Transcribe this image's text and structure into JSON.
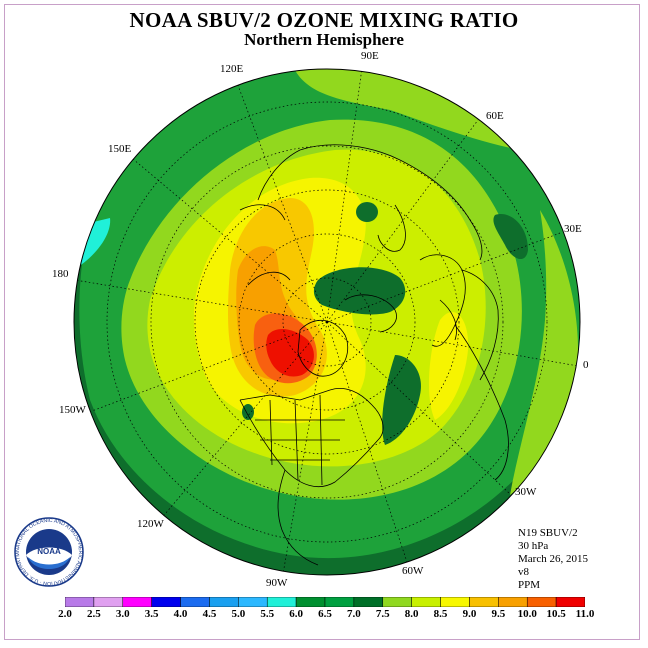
{
  "title": "NOAA SBUV/2 OZONE MIXING RATIO",
  "subtitle": "Northern Hemisphere",
  "longitude_labels": {
    "lon_90e": "90E",
    "lon_120e": "120E",
    "lon_60e": "60E",
    "lon_150e": "150E",
    "lon_30e": "30E",
    "lon_180": "180",
    "lon_0": "0",
    "lon_150w": "150W",
    "lon_30w": "30W",
    "lon_120w": "120W",
    "lon_60w": "60W",
    "lon_90w": "90W"
  },
  "info": {
    "satellite": "N19 SBUV/2",
    "level": "30 hPa",
    "date": "March 26, 2015",
    "version": "v8",
    "units": "PPM"
  },
  "logo": {
    "text": "NOAA",
    "ring_text": "NATIONAL OCEANIC AND ATMOSPHERIC ADMINISTRATION · U.S. DEPARTMENT OF COMMERCE"
  },
  "colorbar": {
    "labels": [
      "2.0",
      "2.5",
      "3.0",
      "3.5",
      "4.0",
      "4.5",
      "5.0",
      "5.5",
      "6.0",
      "6.5",
      "7.0",
      "7.5",
      "8.0",
      "8.5",
      "9.0",
      "9.5",
      "10.0",
      "10.5",
      "11.0"
    ],
    "colors": [
      "#b87ae8",
      "#e0a0f0",
      "#ff00ff",
      "#0000ee",
      "#1c6cf0",
      "#1aa0f0",
      "#2cb8ff",
      "#20f0d8",
      "#009030",
      "#00a040",
      "#007028",
      "#90d820",
      "#c8f000",
      "#f8f800",
      "#f8c000",
      "#f8a000",
      "#f86000",
      "#f00000",
      "#905030"
    ]
  },
  "palette": {
    "dark_green": "#0e6e2c",
    "mid_green": "#1ea23a",
    "lime": "#92d81e",
    "yellow_green": "#ccee00",
    "yellow": "#f6f400",
    "light_orange": "#f8c800",
    "orange": "#f8a000",
    "dark_orange": "#f86010",
    "red": "#ee1000",
    "cyan": "#20f0d8"
  }
}
